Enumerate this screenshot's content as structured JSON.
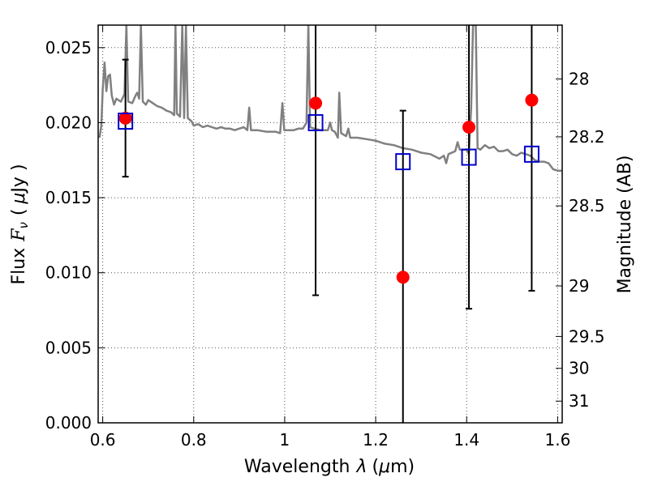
{
  "chart_data": {
    "type": "scatter",
    "xlabel_prefix": "Wavelength",
    "xlabel_sym": "λ",
    "xlabel_unit_open": "(",
    "xlabel_unit_mu": "μ",
    "xlabel_unit_rest": "m)",
    "ylabel_prefix": "Flux",
    "ylabel_sym": "F",
    "ylabel_sub": "ν",
    "ylabel_unit_open": "(",
    "ylabel_unit_mu": "μ",
    "ylabel_unit_rest": "Jy )",
    "y2label": "Magnitude (AB)",
    "xlim": [
      0.59,
      1.61
    ],
    "ylim": [
      0.0,
      0.0265
    ],
    "grid": true,
    "x_ticks": [
      {
        "value": 0.6,
        "label": "0.6"
      },
      {
        "value": 0.8,
        "label": "0.8"
      },
      {
        "value": 1.0,
        "label": "1"
      },
      {
        "value": 1.2,
        "label": "1.2"
      },
      {
        "value": 1.4,
        "label": "1.4"
      },
      {
        "value": 1.6,
        "label": "1.6"
      }
    ],
    "y_ticks": [
      {
        "value": 0.0,
        "label": "0.000"
      },
      {
        "value": 0.005,
        "label": "0.005"
      },
      {
        "value": 0.01,
        "label": "0.010"
      },
      {
        "value": 0.015,
        "label": "0.015"
      },
      {
        "value": 0.02,
        "label": "0.020"
      },
      {
        "value": 0.025,
        "label": "0.025"
      }
    ],
    "y2_ticks": [
      {
        "value": 28,
        "label": "28"
      },
      {
        "value": 28.2,
        "label": "28.2"
      },
      {
        "value": 28.5,
        "label": "28.5"
      },
      {
        "value": 29,
        "label": "29"
      },
      {
        "value": 29.5,
        "label": "29.5"
      },
      {
        "value": 30,
        "label": "30"
      },
      {
        "value": 31,
        "label": "31"
      }
    ],
    "observed": {
      "color": "#ff0000",
      "points": [
        {
          "x": 0.65,
          "y": 0.0203,
          "err": 0.0039
        },
        {
          "x": 1.068,
          "y": 0.0213,
          "err": 0.0128
        },
        {
          "x": 1.26,
          "y": 0.0097,
          "err": 0.0111
        },
        {
          "x": 1.405,
          "y": 0.0197,
          "err": 0.0121
        },
        {
          "x": 1.543,
          "y": 0.0215,
          "err": 0.0127
        }
      ]
    },
    "model_photometry": {
      "color": "#0000cc",
      "points": [
        {
          "x": 0.65,
          "y": 0.0201
        },
        {
          "x": 1.068,
          "y": 0.02
        },
        {
          "x": 1.26,
          "y": 0.0174
        },
        {
          "x": 1.405,
          "y": 0.0177
        },
        {
          "x": 1.543,
          "y": 0.0179
        }
      ]
    },
    "spectrum": {
      "color": "#808080",
      "points": [
        [
          0.593,
          0.019
        ],
        [
          0.597,
          0.0198
        ],
        [
          0.6,
          0.0222
        ],
        [
          0.604,
          0.024
        ],
        [
          0.608,
          0.0221
        ],
        [
          0.612,
          0.0231
        ],
        [
          0.616,
          0.0232
        ],
        [
          0.62,
          0.0218
        ],
        [
          0.625,
          0.0212
        ],
        [
          0.63,
          0.0216
        ],
        [
          0.64,
          0.0214
        ],
        [
          0.648,
          0.0219
        ],
        [
          0.652,
          0.0265
        ],
        [
          0.656,
          0.0214
        ],
        [
          0.665,
          0.0213
        ],
        [
          0.672,
          0.0218
        ],
        [
          0.676,
          0.022
        ],
        [
          0.68,
          0.0216
        ],
        [
          0.684,
          0.0265
        ],
        [
          0.688,
          0.0214
        ],
        [
          0.695,
          0.0212
        ],
        [
          0.7,
          0.0215
        ],
        [
          0.71,
          0.0213
        ],
        [
          0.72,
          0.0211
        ],
        [
          0.73,
          0.021
        ],
        [
          0.74,
          0.0208
        ],
        [
          0.75,
          0.0207
        ],
        [
          0.757,
          0.0205
        ],
        [
          0.76,
          0.0265
        ],
        [
          0.763,
          0.0206
        ],
        [
          0.77,
          0.0204
        ],
        [
          0.775,
          0.0265
        ],
        [
          0.779,
          0.0203
        ],
        [
          0.783,
          0.0265
        ],
        [
          0.787,
          0.0203
        ],
        [
          0.795,
          0.0201
        ],
        [
          0.8,
          0.0198
        ],
        [
          0.81,
          0.0199
        ],
        [
          0.82,
          0.0197
        ],
        [
          0.83,
          0.0198
        ],
        [
          0.84,
          0.0197
        ],
        [
          0.85,
          0.0196
        ],
        [
          0.86,
          0.0197
        ],
        [
          0.87,
          0.0196
        ],
        [
          0.88,
          0.0196
        ],
        [
          0.89,
          0.0195
        ],
        [
          0.9,
          0.0196
        ],
        [
          0.91,
          0.0197
        ],
        [
          0.918,
          0.0195
        ],
        [
          0.922,
          0.021
        ],
        [
          0.926,
          0.0195
        ],
        [
          0.94,
          0.0195
        ],
        [
          0.96,
          0.0194
        ],
        [
          0.98,
          0.0194
        ],
        [
          0.99,
          0.0193
        ],
        [
          0.995,
          0.0213
        ],
        [
          0.999,
          0.0195
        ],
        [
          1.01,
          0.0195
        ],
        [
          1.02,
          0.0195
        ],
        [
          1.03,
          0.0196
        ],
        [
          1.04,
          0.0196
        ],
        [
          1.048,
          0.02
        ],
        [
          1.052,
          0.0265
        ],
        [
          1.056,
          0.0197
        ],
        [
          1.065,
          0.0196
        ],
        [
          1.08,
          0.0195
        ],
        [
          1.095,
          0.0195
        ],
        [
          1.1,
          0.02
        ],
        [
          1.104,
          0.0195
        ],
        [
          1.11,
          0.0194
        ],
        [
          1.117,
          0.019
        ],
        [
          1.12,
          0.022
        ],
        [
          1.124,
          0.0193
        ],
        [
          1.135,
          0.0191
        ],
        [
          1.14,
          0.0196
        ],
        [
          1.144,
          0.019
        ],
        [
          1.16,
          0.019
        ],
        [
          1.18,
          0.0189
        ],
        [
          1.2,
          0.0188
        ],
        [
          1.22,
          0.0186
        ],
        [
          1.24,
          0.0185
        ],
        [
          1.26,
          0.0183
        ],
        [
          1.28,
          0.0182
        ],
        [
          1.3,
          0.018
        ],
        [
          1.32,
          0.0179
        ],
        [
          1.34,
          0.0176
        ],
        [
          1.35,
          0.0178
        ],
        [
          1.355,
          0.0173
        ],
        [
          1.36,
          0.0179
        ],
        [
          1.375,
          0.0181
        ],
        [
          1.38,
          0.0187
        ],
        [
          1.385,
          0.0182
        ],
        [
          1.4,
          0.0182
        ],
        [
          1.405,
          0.0179
        ],
        [
          1.41,
          0.021
        ],
        [
          1.414,
          0.0265
        ],
        [
          1.42,
          0.0265
        ],
        [
          1.424,
          0.0183
        ],
        [
          1.43,
          0.0182
        ],
        [
          1.44,
          0.0185
        ],
        [
          1.45,
          0.0183
        ],
        [
          1.46,
          0.0184
        ],
        [
          1.47,
          0.0181
        ],
        [
          1.48,
          0.0181
        ],
        [
          1.49,
          0.0182
        ],
        [
          1.5,
          0.0179
        ],
        [
          1.51,
          0.0178
        ],
        [
          1.52,
          0.018
        ],
        [
          1.53,
          0.0179
        ],
        [
          1.54,
          0.0178
        ],
        [
          1.55,
          0.0175
        ],
        [
          1.56,
          0.0174
        ],
        [
          1.57,
          0.0174
        ],
        [
          1.58,
          0.0173
        ],
        [
          1.59,
          0.0169
        ],
        [
          1.6,
          0.0168
        ],
        [
          1.61,
          0.0168
        ]
      ]
    }
  }
}
